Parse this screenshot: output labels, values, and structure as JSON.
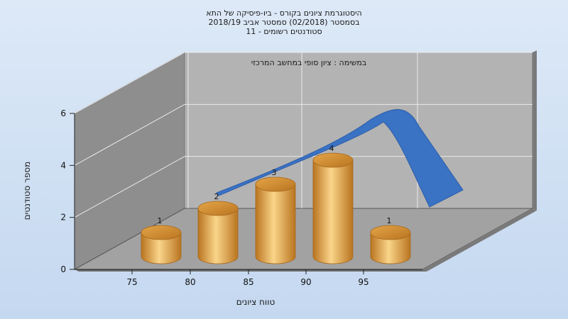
{
  "chart_data": {
    "type": "bar",
    "title_lines": [
      "היסטוגרמת ציונים בקורס - ביו-פיסיקה של התא",
      "בסמסטר  (02/2018)  סמסטר אביב 2018/19",
      "סטודנטים רשומים - 11"
    ],
    "subtitle": "במשימה : ציון סופי במחשב המרכזי",
    "xlabel": "טווח ציונים",
    "ylabel": "מספר סטודנטים",
    "x_ticks": [
      "75",
      "80",
      "85",
      "90",
      "95"
    ],
    "y_ticks": [
      "0",
      "2",
      "4",
      "6"
    ],
    "ylim": [
      0,
      6
    ],
    "series": [
      {
        "values": [
          1,
          2,
          3,
          4,
          1
        ],
        "data_labels": [
          "1",
          "2",
          "3",
          "4",
          "1"
        ]
      }
    ],
    "trend_line": {
      "visible": true
    },
    "grid": true,
    "colors": {
      "bar_light": "#fad58a",
      "bar_mid": "#e4a548",
      "bar_dark": "#b97420",
      "trend": "#3a72c4",
      "wall_left": "#8e8e8e",
      "wall_back": "#b3b3b3",
      "floor": "#a2a2a2"
    }
  }
}
